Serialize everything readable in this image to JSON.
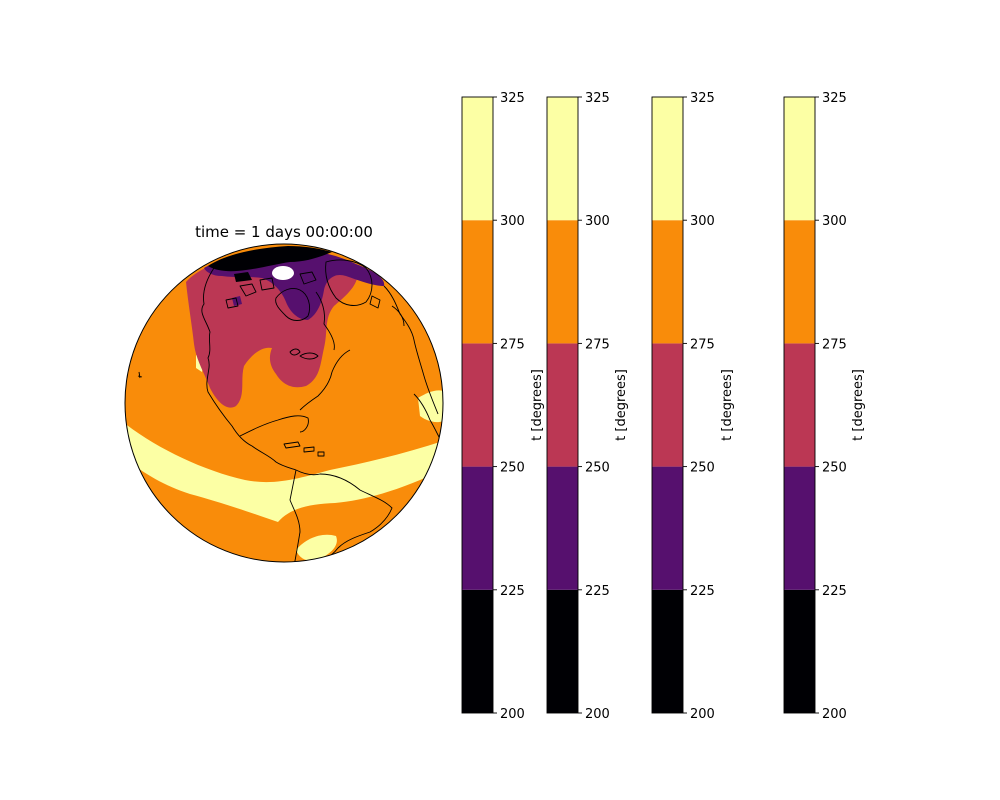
{
  "map": {
    "title": "time = 1 days 00:00:00",
    "projection": "orthographic",
    "variable": "t",
    "colormap": "inferno",
    "features": [
      "coastlines"
    ]
  },
  "colorbars": [
    {
      "label": "t [degrees]",
      "ticks": [
        "200",
        "225",
        "250",
        "275",
        "300",
        "325"
      ],
      "range": [
        200,
        325
      ]
    },
    {
      "label": "t [degrees]",
      "ticks": [
        "200",
        "225",
        "250",
        "275",
        "300",
        "325"
      ],
      "range": [
        200,
        325
      ]
    },
    {
      "label": "t [degrees]",
      "ticks": [
        "200",
        "225",
        "250",
        "275",
        "300",
        "325"
      ],
      "range": [
        200,
        325
      ]
    },
    {
      "label": "t [degrees]",
      "ticks": [
        "200",
        "225",
        "250",
        "275",
        "300",
        "325"
      ],
      "range": [
        200,
        325
      ]
    }
  ],
  "levels": [
    {
      "min": 200,
      "max": 225,
      "color": "#000004"
    },
    {
      "min": 225,
      "max": 250,
      "color": "#56106e"
    },
    {
      "min": 250,
      "max": 275,
      "color": "#bb3754"
    },
    {
      "min": 275,
      "max": 300,
      "color": "#f98c0a"
    },
    {
      "min": 300,
      "max": 325,
      "color": "#fcffa4"
    }
  ],
  "colors": {
    "level_200_225": "#000004",
    "level_225_250": "#56106e",
    "level_250_275": "#bb3754",
    "level_275_300": "#f98c0a",
    "level_300_325": "#fcffa4",
    "missing": "#ffffff"
  }
}
